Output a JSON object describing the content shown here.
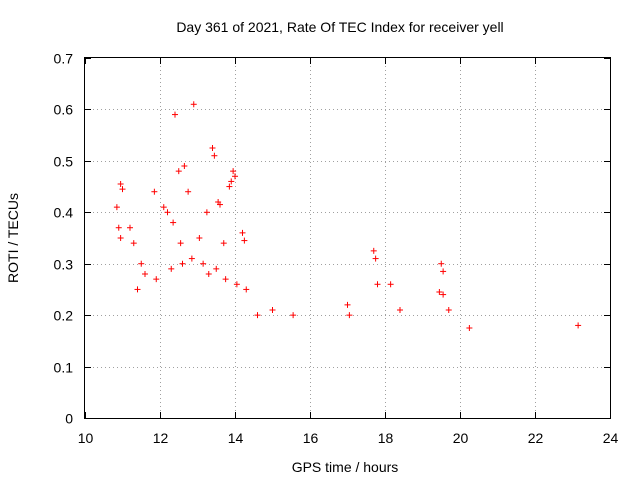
{
  "chart_data": {
    "type": "scatter",
    "title": "Day 361 of 2021, Rate Of TEC Index for receiver yell",
    "xlabel": "GPS time / hours",
    "ylabel": "ROTI / TECUs",
    "xlim": [
      10,
      24
    ],
    "ylim": [
      0,
      0.7
    ],
    "grid": true,
    "marker": "+",
    "marker_color": "#ff0000",
    "x_ticks": [
      "10",
      "12",
      "14",
      "16",
      "18",
      "20",
      "22",
      "24"
    ],
    "y_ticks": [
      "0",
      "0.1",
      "0.2",
      "0.3",
      "0.4",
      "0.5",
      "0.6",
      "0.7"
    ],
    "series": [
      {
        "name": "ROTI",
        "points": [
          [
            12.4,
            0.59
          ],
          [
            12.9,
            0.61
          ],
          [
            13.4,
            0.525
          ],
          [
            13.45,
            0.51
          ],
          [
            12.65,
            0.49
          ],
          [
            12.5,
            0.48
          ],
          [
            13.95,
            0.48
          ],
          [
            13.9,
            0.46
          ],
          [
            13.85,
            0.45
          ],
          [
            11.85,
            0.44
          ],
          [
            10.95,
            0.455
          ],
          [
            11.0,
            0.445
          ],
          [
            12.75,
            0.44
          ],
          [
            13.55,
            0.42
          ],
          [
            13.6,
            0.415
          ],
          [
            14.0,
            0.47
          ],
          [
            10.85,
            0.41
          ],
          [
            12.1,
            0.41
          ],
          [
            12.2,
            0.4
          ],
          [
            13.25,
            0.4
          ],
          [
            10.9,
            0.37
          ],
          [
            11.2,
            0.37
          ],
          [
            12.35,
            0.38
          ],
          [
            14.2,
            0.36
          ],
          [
            14.25,
            0.345
          ],
          [
            11.3,
            0.34
          ],
          [
            10.95,
            0.35
          ],
          [
            12.55,
            0.34
          ],
          [
            13.05,
            0.35
          ],
          [
            13.7,
            0.34
          ],
          [
            17.7,
            0.325
          ],
          [
            17.75,
            0.31
          ],
          [
            19.5,
            0.3
          ],
          [
            19.55,
            0.285
          ],
          [
            17.8,
            0.26
          ],
          [
            18.15,
            0.26
          ],
          [
            19.45,
            0.245
          ],
          [
            19.55,
            0.24
          ],
          [
            19.7,
            0.21
          ],
          [
            18.4,
            0.21
          ],
          [
            20.25,
            0.175
          ],
          [
            23.15,
            0.18
          ],
          [
            17.0,
            0.22
          ],
          [
            17.05,
            0.2
          ],
          [
            15.55,
            0.2
          ],
          [
            14.6,
            0.2
          ],
          [
            15.0,
            0.21
          ],
          [
            11.5,
            0.3
          ],
          [
            11.6,
            0.28
          ],
          [
            11.9,
            0.27
          ],
          [
            12.3,
            0.29
          ],
          [
            12.6,
            0.3
          ],
          [
            12.85,
            0.31
          ],
          [
            13.15,
            0.3
          ],
          [
            13.3,
            0.28
          ],
          [
            13.5,
            0.29
          ],
          [
            13.75,
            0.27
          ],
          [
            14.05,
            0.26
          ],
          [
            14.3,
            0.25
          ],
          [
            11.4,
            0.25
          ]
        ]
      }
    ]
  }
}
